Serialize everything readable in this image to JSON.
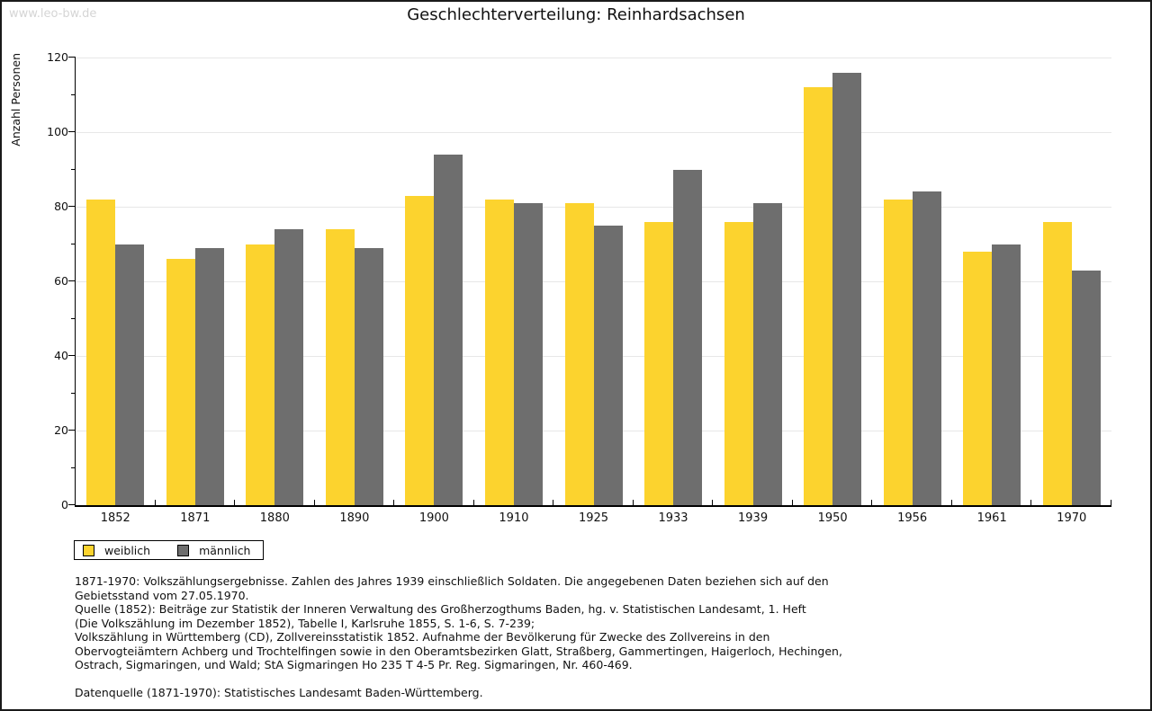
{
  "watermark": "www.leo-bw.de",
  "title": "Geschlechterverteilung: Reinhardsachsen",
  "chart_data": {
    "type": "bar",
    "title": "Geschlechterverteilung: Reinhardsachsen",
    "xlabel": "",
    "ylabel": "Anzahl Personen",
    "ylim": [
      0,
      120
    ],
    "ytick_step": 20,
    "yminor_step": 10,
    "grid": true,
    "legend_position": "bottom-left",
    "categories": [
      "1852",
      "1871",
      "1880",
      "1890",
      "1900",
      "1910",
      "1925",
      "1933",
      "1939",
      "1950",
      "1956",
      "1961",
      "1970"
    ],
    "series": [
      {
        "name": "weiblich",
        "color": "#FCD32E",
        "values": [
          82,
          66,
          70,
          74,
          83,
          82,
          81,
          76,
          76,
          112,
          82,
          68,
          76
        ]
      },
      {
        "name": "männlich",
        "color": "#6E6E6E",
        "values": [
          70,
          69,
          74,
          69,
          94,
          81,
          75,
          90,
          81,
          116,
          84,
          70,
          63
        ]
      }
    ]
  },
  "footer": {
    "lines": [
      "1871-1970: Volkszählungsergebnisse. Zahlen des Jahres 1939 einschließlich Soldaten. Die angegebenen Daten beziehen sich auf den",
      "Gebietsstand vom 27.05.1970.",
      "Quelle (1852): Beiträge zur Statistik der Inneren Verwaltung des Großherzogthums Baden, hg. v. Statistischen Landesamt, 1. Heft",
      "(Die Volkszählung im Dezember 1852), Tabelle I, Karlsruhe 1855, S. 1-6, S. 7-239;",
      "Volkszählung in Württemberg (CD), Zollvereinsstatistik 1852. Aufnahme der Bevölkerung für Zwecke des Zollvereins in den",
      "Obervogteiämtern Achberg und Trochtelfingen sowie in den Oberamtsbezirken Glatt, Straßberg, Gammertingen, Haigerloch, Hechingen,",
      "Ostrach, Sigmaringen, und Wald; StA Sigmaringen Ho 235 T 4-5 Pr. Reg. Sigmaringen, Nr. 460-469.",
      "",
      "Datenquelle (1871-1970): Statistisches Landesamt Baden-Württemberg."
    ]
  },
  "colors": {
    "female_bar": "#FCD32E",
    "male_bar": "#6E6E6E",
    "gridline": "#E7E7E7",
    "axis": "#000000",
    "watermark": "#D5D5D5",
    "border": "#1A1A1A"
  }
}
